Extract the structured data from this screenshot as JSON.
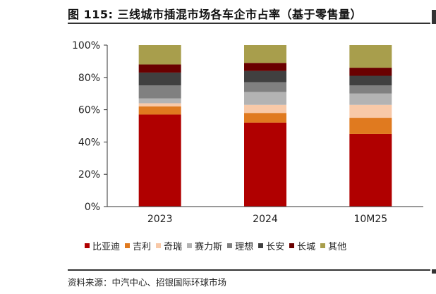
{
  "header": {
    "title": "图 115: 三线城市插混市场各车企市占率（基于零售量）"
  },
  "source": {
    "text": "资料来源：中汽中心、招银国际环球市场"
  },
  "chart_data": {
    "type": "bar",
    "stacked": true,
    "categories": [
      "2023",
      "2024",
      "10M25"
    ],
    "ylim": [
      0,
      100
    ],
    "yticks": [
      "0%",
      "20%",
      "40%",
      "60%",
      "80%",
      "100%"
    ],
    "grid": false,
    "legend_position": "bottom",
    "series": [
      {
        "name": "比亚迪",
        "color": "#B00000",
        "values": [
          57,
          52,
          45
        ]
      },
      {
        "name": "吉利",
        "color": "#E07A1F",
        "values": [
          5,
          6,
          10
        ]
      },
      {
        "name": "奇瑞",
        "color": "#F8C9A8",
        "values": [
          2,
          5,
          8
        ]
      },
      {
        "name": "赛力斯",
        "color": "#B3B3B3",
        "values": [
          3,
          8,
          7
        ]
      },
      {
        "name": "理想",
        "color": "#808080",
        "values": [
          8,
          6,
          5
        ]
      },
      {
        "name": "长安",
        "color": "#404040",
        "values": [
          8,
          7,
          6
        ]
      },
      {
        "name": "长城",
        "color": "#6A0000",
        "values": [
          5,
          5,
          5
        ]
      },
      {
        "name": "其他",
        "color": "#A89E4C",
        "values": [
          12,
          11,
          14
        ]
      }
    ]
  }
}
